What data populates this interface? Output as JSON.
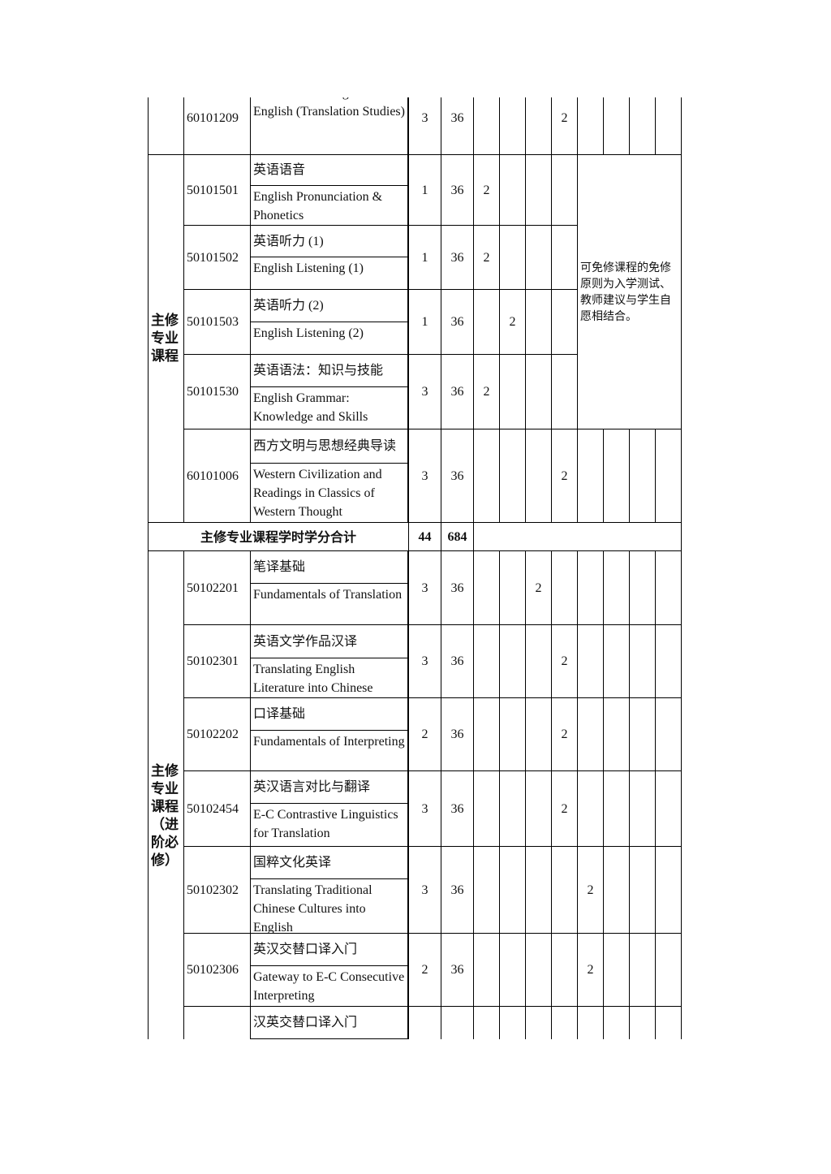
{
  "row_top": {
    "code": "60101209",
    "name_en": "Academic Writing in English (Translation Studies)",
    "credits": 3,
    "hours": 36,
    "semesters": [
      null,
      null,
      null,
      2,
      null,
      null,
      null,
      null
    ]
  },
  "core": {
    "label": "主修专业课程",
    "note": "可免修课程的免修原则为入学测试、教师建议与学生自愿相结合。",
    "rows": [
      {
        "code": "50101501",
        "name_cn": "英语语音",
        "name_en": "English Pronunciation & Phonetics",
        "credits": 1,
        "hours": 36,
        "semesters": [
          2,
          null,
          null,
          null
        ]
      },
      {
        "code": "50101502",
        "name_cn": "英语听力 (1)",
        "name_en": "English Listening (1)",
        "credits": 1,
        "hours": 36,
        "semesters": [
          2,
          null,
          null,
          null
        ]
      },
      {
        "code": "50101503",
        "name_cn": "英语听力 (2)",
        "name_en": "English Listening (2)",
        "credits": 1,
        "hours": 36,
        "semesters": [
          null,
          2,
          null,
          null
        ]
      },
      {
        "code": "50101530",
        "name_cn": "英语语法：知识与技能",
        "name_en": "English Grammar: Knowledge and Skills",
        "credits": 3,
        "hours": 36,
        "semesters": [
          2,
          null,
          null,
          null
        ]
      },
      {
        "code": "60101006",
        "name_cn": "西方文明与思想经典导读",
        "name_en": "Western Civilization and Readings in Classics of Western Thought",
        "credits": 3,
        "hours": 36,
        "semesters": [
          null,
          null,
          null,
          2,
          null,
          null,
          null,
          null
        ]
      }
    ]
  },
  "core_total": {
    "label": "主修专业课程学时学分合计",
    "credits": 44,
    "hours": 684
  },
  "advanced": {
    "label": "主修专业课程（进阶必修）",
    "rows": [
      {
        "code": "50102201",
        "name_cn": "笔译基础",
        "name_en": "Fundamentals of Translation",
        "credits": 3,
        "hours": 36,
        "semesters": [
          null,
          null,
          2,
          null,
          null,
          null,
          null,
          null
        ]
      },
      {
        "code": "50102301",
        "name_cn": "英语文学作品汉译",
        "name_en": "Translating English Literature into Chinese",
        "credits": 3,
        "hours": 36,
        "semesters": [
          null,
          null,
          null,
          2,
          null,
          null,
          null,
          null
        ]
      },
      {
        "code": "50102202",
        "name_cn": "口译基础",
        "name_en": "Fundamentals of Interpreting",
        "credits": 2,
        "hours": 36,
        "semesters": [
          null,
          null,
          null,
          2,
          null,
          null,
          null,
          null
        ]
      },
      {
        "code": "50102454",
        "name_cn": "英汉语言对比与翻译",
        "name_en": "E-C Contrastive Linguistics for Translation",
        "credits": 3,
        "hours": 36,
        "semesters": [
          null,
          null,
          null,
          2,
          null,
          null,
          null,
          null
        ]
      },
      {
        "code": "50102302",
        "name_cn": "国粹文化英译",
        "name_en": "Translating Traditional Chinese Cultures into English",
        "credits": 3,
        "hours": 36,
        "semesters": [
          null,
          null,
          null,
          null,
          2,
          null,
          null,
          null
        ]
      },
      {
        "code": "50102306",
        "name_cn": "英汉交替口译入门",
        "name_en": "Gateway to E-C Consecutive Interpreting",
        "credits": 2,
        "hours": 36,
        "semesters": [
          null,
          null,
          null,
          null,
          2,
          null,
          null,
          null
        ]
      },
      {
        "name_cn": "汉英交替口译入门"
      }
    ]
  }
}
